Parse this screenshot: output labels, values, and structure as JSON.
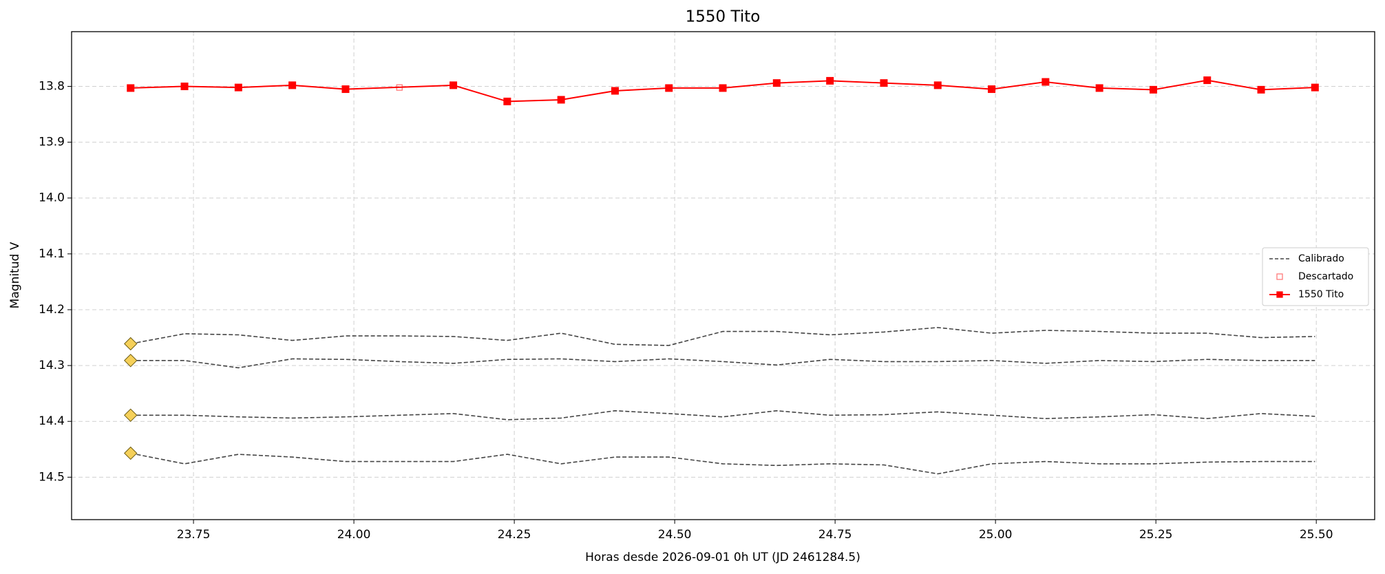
{
  "chart_data": {
    "type": "line",
    "title": "1550 Tito",
    "x_label": "Horas desde 2026-09-01 0h UT (JD 2461284.5)",
    "y_label": "Magnitud V",
    "invert_y": true,
    "grid": true,
    "legend_loc": "center right",
    "xlim": [
      23.56,
      25.591
    ],
    "ylim": [
      13.702,
      14.576
    ],
    "xticks": [
      23.75,
      {
        "value": 24.0,
        "label": "24.00"
      },
      24.25,
      {
        "value": 24.5,
        "label": "24.50"
      },
      24.75,
      {
        "value": 25.0,
        "label": "25.00"
      },
      25.25,
      {
        "value": 25.5,
        "label": "25.50"
      }
    ],
    "yticks": [
      13.8,
      13.9,
      {
        "value": 14.0,
        "label": "14.0"
      },
      14.1,
      14.2,
      14.3,
      14.4,
      14.5
    ],
    "x": [
      23.652,
      23.736,
      23.82,
      23.904,
      23.987,
      24.071,
      24.155,
      24.239,
      24.323,
      24.407,
      24.491,
      24.575,
      24.659,
      24.742,
      24.826,
      24.91,
      24.994,
      25.078,
      25.162,
      25.246,
      25.33,
      25.414,
      25.498
    ],
    "calibrated": {
      "name": "Calibrado",
      "color": "#444444",
      "marker_color": "#f5d05a",
      "values": [
        [
          14.261,
          14.243,
          14.245,
          14.255,
          14.247,
          14.247,
          14.248,
          14.255,
          14.242,
          14.262,
          14.264,
          14.239,
          14.239,
          14.245,
          14.24,
          14.232,
          14.242,
          14.237,
          14.239,
          14.242,
          14.242,
          14.25,
          14.248
        ],
        [
          14.291,
          14.291,
          14.304,
          14.288,
          14.289,
          14.293,
          14.296,
          14.289,
          14.288,
          14.293,
          14.288,
          14.293,
          14.299,
          14.289,
          14.293,
          14.293,
          14.291,
          14.296,
          14.291,
          14.293,
          14.289,
          14.291,
          14.291
        ],
        [
          14.389,
          14.389,
          14.392,
          14.394,
          14.392,
          14.389,
          14.386,
          14.397,
          14.394,
          14.381,
          14.386,
          14.392,
          14.381,
          14.389,
          14.388,
          14.383,
          14.389,
          14.395,
          14.392,
          14.388,
          14.395,
          14.386,
          14.391
        ],
        [
          14.457,
          14.476,
          14.459,
          14.464,
          14.472,
          14.472,
          14.472,
          14.459,
          14.476,
          14.464,
          14.464,
          14.476,
          14.479,
          14.476,
          14.478,
          14.494,
          14.476,
          14.472,
          14.476,
          14.476,
          14.473,
          14.472,
          14.472
        ]
      ]
    },
    "series": [
      {
        "name": "Descartado",
        "color": "#ff7a7a",
        "x": [
          24.071
        ],
        "values": [
          13.802
        ]
      },
      {
        "name": "1550 Tito",
        "color": "#ff0000",
        "x": [
          23.652,
          23.736,
          23.82,
          23.904,
          23.987,
          24.155,
          24.239,
          24.323,
          24.407,
          24.491,
          24.575,
          24.659,
          24.742,
          24.826,
          24.91,
          24.994,
          25.078,
          25.162,
          25.246,
          25.33,
          25.414,
          25.498
        ],
        "values": [
          13.803,
          13.8,
          13.802,
          13.798,
          13.805,
          13.798,
          13.827,
          13.824,
          13.808,
          13.803,
          13.803,
          13.794,
          13.79,
          13.794,
          13.798,
          13.805,
          13.792,
          13.803,
          13.806,
          13.789,
          13.806,
          13.802
        ]
      }
    ]
  }
}
